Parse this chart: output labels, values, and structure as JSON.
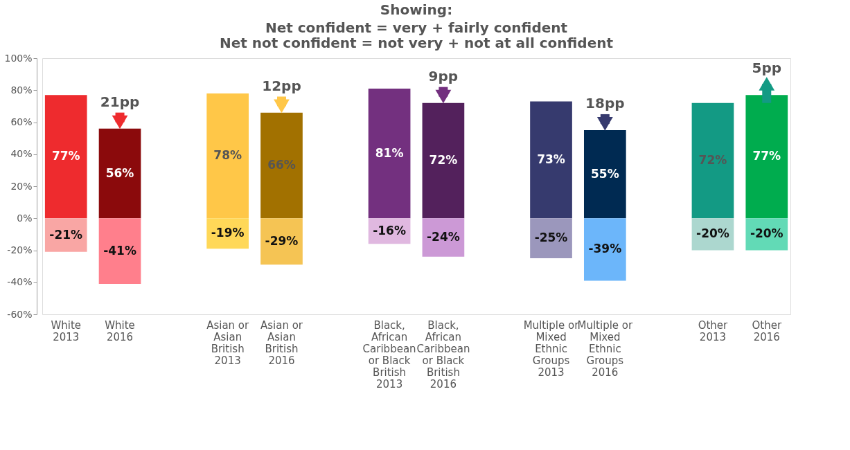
{
  "chart_data": {
    "type": "bar",
    "title": "Showing:",
    "subtitle": "Net confident = very + fairly confident\nNet not confident = not very + not at all confident",
    "categories": [
      "White 2013",
      "White 2016",
      null,
      "Asian or Asian British 2013",
      "Asian or Asian British 2016",
      null,
      "Black, African Caribbean or Black British 2013",
      "Black, African Caribbean or Black British 2016",
      null,
      "Multiple or Mixed Ethnic Groups 2013",
      "Multiple or Mixed Ethnic Groups 2016",
      null,
      "Other 2013",
      "Other 2016"
    ],
    "stacked": true,
    "series": [
      {
        "values": [
          77,
          56,
          null,
          78,
          66,
          null,
          81,
          72,
          null,
          73,
          55,
          null,
          72,
          77
        ],
        "colors": [
          "#ee2b2e",
          "#8b0a0c",
          null,
          "#ffc748",
          "#a27100",
          null,
          "#73307f",
          "#53215c",
          null,
          "#363a6e",
          "#002a52",
          null,
          "#139a84",
          "#00ac4e"
        ],
        "value_labels": [
          "77%",
          "56%",
          null,
          "78%",
          "66%",
          null,
          "81%",
          "72%",
          null,
          "73%",
          "55%",
          null,
          "72%",
          "77%"
        ]
      },
      {
        "values": [
          -21,
          -41,
          null,
          -19,
          -29,
          null,
          -16,
          -24,
          null,
          -25,
          -39,
          null,
          -20,
          -20
        ],
        "colors": [
          "#f9a6a4",
          "#ff7f8c",
          null,
          "#ffd858",
          "#f5c454",
          null,
          "#e0b8e0",
          "#cc99d6",
          null,
          "#9b97bc",
          "#6cb6fa",
          null,
          "#acd7cf",
          "#62dab6"
        ],
        "value_labels": [
          "-21%",
          "-41%",
          null,
          "-19%",
          "-29%",
          null,
          "-16%",
          "-24%",
          null,
          "-25%",
          "-39%",
          null,
          "-20%",
          "-20%"
        ]
      }
    ],
    "ylim": [
      -60,
      100
    ],
    "yticks": [
      {
        "value": -60,
        "label": "-60%"
      },
      {
        "value": -40,
        "label": "-40%"
      },
      {
        "value": -20,
        "label": "-20%"
      },
      {
        "value": 0,
        "label": "0%"
      },
      {
        "value": 20,
        "label": "20%"
      },
      {
        "value": 40,
        "label": "40%"
      },
      {
        "value": 60,
        "label": "60%"
      },
      {
        "value": 80,
        "label": "80%"
      },
      {
        "value": 100,
        "label": "100%"
      }
    ],
    "grid": false,
    "annotations": [
      "21pp",
      "12pp",
      "9pp",
      "18pp",
      "5pp"
    ]
  }
}
